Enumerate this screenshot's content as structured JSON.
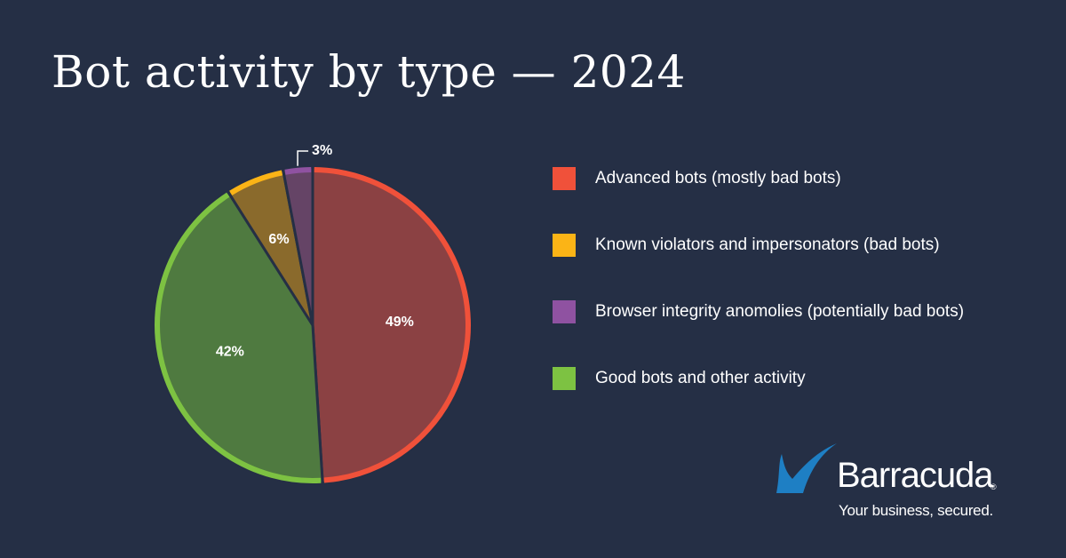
{
  "chart_data": {
    "type": "pie",
    "title": "Bot activity by type — 2024",
    "slices": [
      {
        "label": "Advanced bots (mostly bad bots)",
        "value": 49,
        "value_label": "49%",
        "color": "#f0513a",
        "fill": "#8b4143"
      },
      {
        "label": "Good bots and other activity",
        "value": 42,
        "value_label": "42%",
        "color": "#7dc242",
        "fill": "#4f7a40"
      },
      {
        "label": "Known violators and impersonators (bad bots)",
        "value": 6,
        "value_label": "6%",
        "color": "#fbb416",
        "fill": "#8a6a2c"
      },
      {
        "label": "Browser integrity anomolies (potentially bad bots)",
        "value": 3,
        "value_label": "3%",
        "color": "#8f52a1",
        "fill": "#654466"
      }
    ],
    "legend": [
      {
        "label": "Advanced bots (mostly bad bots)",
        "color": "#f0513a"
      },
      {
        "label": "Known violators and impersonators (bad bots)",
        "color": "#fbb416"
      },
      {
        "label": "Browser integrity anomolies (potentially bad bots)",
        "color": "#8f52a1"
      },
      {
        "label": "Good bots and other activity",
        "color": "#7dc242"
      }
    ],
    "legend_placement": "right"
  },
  "brand": {
    "name": "Barracuda",
    "tagline": "Your business, secured.",
    "registered": "®",
    "color": "#1e7fc4"
  }
}
